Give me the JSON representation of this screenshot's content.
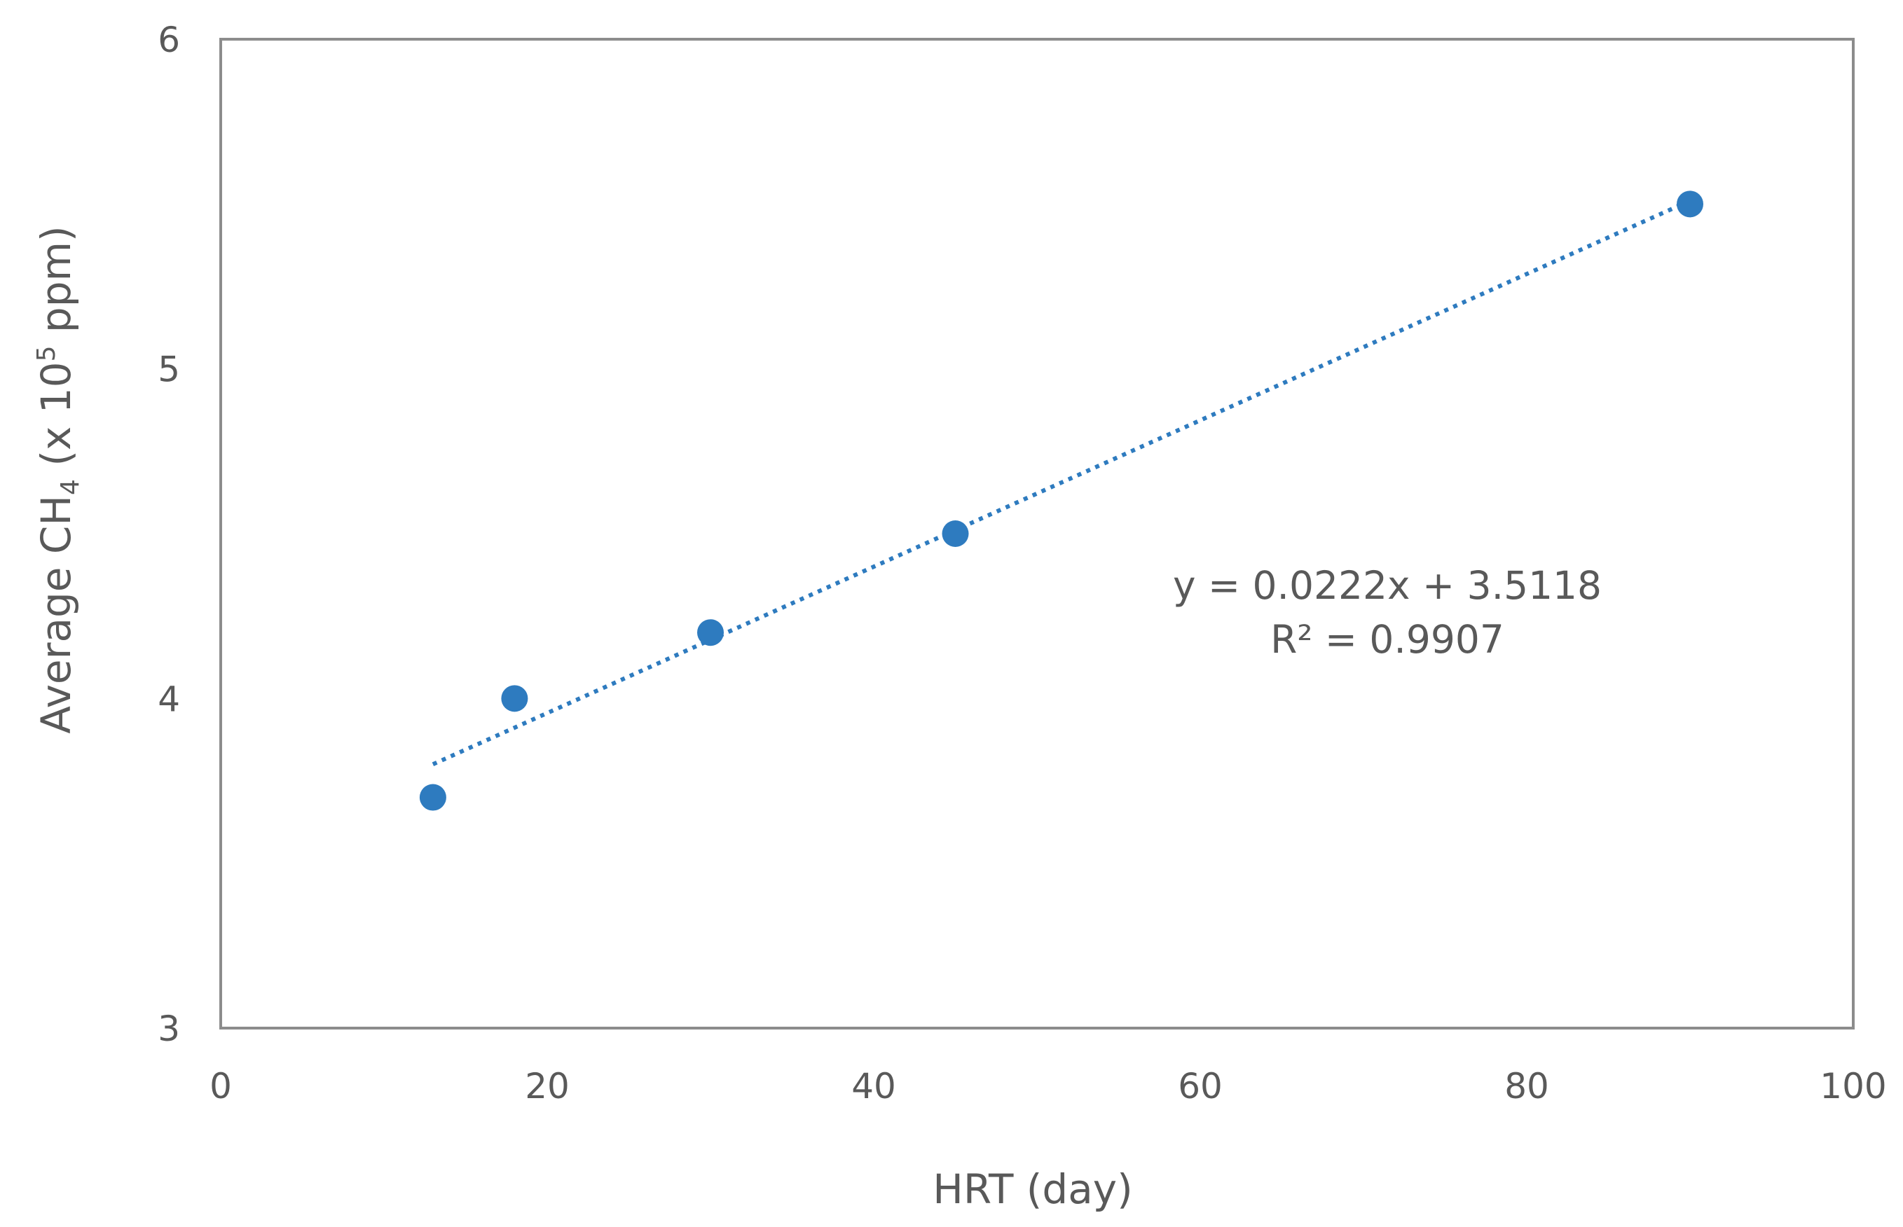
{
  "chart_data": {
    "type": "scatter",
    "title": "",
    "xlabel": "HRT (day)",
    "ylabel": {
      "prefix": "Average CH",
      "subscript": "4",
      "middle": " (x 10",
      "superscript": "5",
      "suffix": " ppm)"
    },
    "xlim": [
      0,
      100
    ],
    "ylim": [
      3,
      6
    ],
    "xticks": [
      0,
      20,
      40,
      60,
      80,
      100
    ],
    "yticks": [
      3,
      4,
      5,
      6
    ],
    "xtick_labels": [
      "0",
      "20",
      "40",
      "60",
      "80",
      "100"
    ],
    "ytick_labels": [
      "3",
      "4",
      "5",
      "6"
    ],
    "grid": false,
    "legend": "none",
    "series": [
      {
        "x": [
          13,
          18,
          30,
          45,
          90
        ],
        "y": [
          3.7,
          4.0,
          4.2,
          4.5,
          5.5
        ],
        "color": "#2e7bbf"
      }
    ],
    "trendline": {
      "type": "linear",
      "style": "dotted",
      "color": "#2e7bbf",
      "slope": 0.0222,
      "intercept": 3.5118,
      "x_range": [
        13,
        90
      ],
      "equation_label": "y = 0.0222x + 3.5118",
      "r2_label": "R² = 0.9907"
    }
  }
}
